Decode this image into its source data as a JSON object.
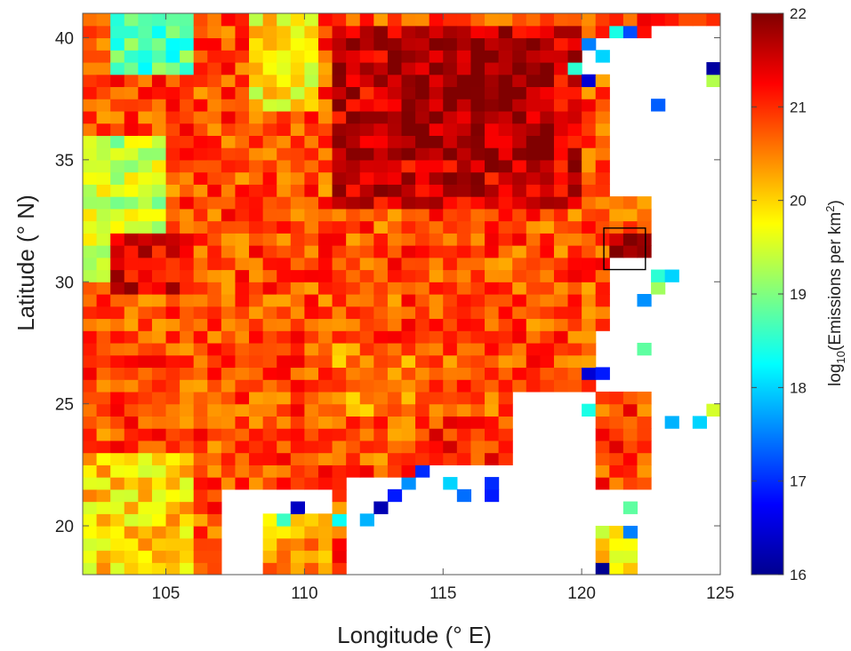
{
  "chart_data": {
    "type": "heatmap",
    "title": "",
    "xlabel": "Longitude (° E)",
    "ylabel": "Latitude (° N)",
    "xlim": [
      102,
      125
    ],
    "ylim": [
      18,
      41
    ],
    "xticks": [
      105,
      110,
      115,
      120,
      125
    ],
    "yticks": [
      20,
      25,
      30,
      35,
      40
    ],
    "grid_step_deg": 0.5,
    "grid": false,
    "colorbar": {
      "label_prefix": "log",
      "label_sub": "10",
      "label_mid": "(Emissions per km",
      "label_sup": "2",
      "label_suffix": ")",
      "range": [
        16,
        22
      ],
      "ticks": [
        16,
        17,
        18,
        19,
        20,
        21,
        22
      ],
      "colormap": "jet",
      "position": "right"
    },
    "highlight_box": {
      "lon": [
        120.8,
        122.3
      ],
      "lat": [
        30.5,
        32.2
      ]
    },
    "regions": [
      {
        "lon": [
          102,
          125
        ],
        "lat": [
          18,
          41
        ],
        "value": 20.8
      },
      {
        "lon": [
          111,
          120
        ],
        "lat": [
          33,
          40.5
        ],
        "value": 21.5
      },
      {
        "lon": [
          113,
          119
        ],
        "lat": [
          35,
          40
        ],
        "value": 21.8
      },
      {
        "lon": [
          102,
          105
        ],
        "lat": [
          30,
          36
        ],
        "value": 19.4
      },
      {
        "lon": [
          103,
          106
        ],
        "lat": [
          38.5,
          41
        ],
        "value": 18.7
      },
      {
        "lon": [
          108,
          110.5
        ],
        "lat": [
          37,
          41
        ],
        "value": 19.8
      },
      {
        "lon": [
          102,
          106
        ],
        "lat": [
          18,
          23
        ],
        "value": 20.0
      },
      {
        "lon": [
          103,
          106
        ],
        "lat": [
          29.5,
          32
        ],
        "value": 21.4
      },
      {
        "lon": [
          120.8,
          122.3
        ],
        "lat": [
          30.5,
          32.2
        ],
        "value": 21.8
      },
      {
        "lon": [
          111,
          114
        ],
        "lat": [
          24.5,
          27.5
        ],
        "value": 20.5
      },
      {
        "lon": [
          114,
          117.5
        ],
        "lat": [
          22.5,
          24.5
        ],
        "value": 21.0
      }
    ],
    "masked_regions": [
      {
        "lon": [
          120.8,
          125
        ],
        "lat": [
          33.5,
          38.5
        ]
      },
      {
        "lon": [
          122.3,
          125
        ],
        "lat": [
          26,
          33.5
        ]
      },
      {
        "lon": [
          121.2,
          125
        ],
        "lat": [
          28,
          31
        ]
      },
      {
        "lon": [
          120.3,
          125
        ],
        "lat": [
          25.5,
          28
        ]
      },
      {
        "lon": [
          114,
          125
        ],
        "lat": [
          18,
          22.5
        ]
      },
      {
        "lon": [
          117.5,
          120.5
        ],
        "lat": [
          22.5,
          25.5
        ]
      },
      {
        "lon": [
          107,
          111
        ],
        "lat": [
          18,
          21.5
        ]
      },
      {
        "lon": [
          111.5,
          114
        ],
        "lat": [
          18,
          22
        ]
      },
      {
        "lon": [
          122.5,
          125
        ],
        "lat": [
          38.5,
          40.3
        ]
      },
      {
        "lon": [
          119.8,
          122.6
        ],
        "lat": [
          38.5,
          40
        ]
      },
      {
        "lon": [
          122.4,
          125
        ],
        "lat": [
          18,
          25
        ]
      },
      {
        "lon": [
          121.5,
          125
        ],
        "lat": [
          22.5,
          25.5
        ]
      },
      {
        "lon": [
          120.4,
          121.3
        ],
        "lat": [
          22,
          25.3
        ]
      }
    ],
    "land_patches": [
      {
        "lon": [
          120.5,
          122.3
        ],
        "lat": [
          21.5,
          25.5
        ],
        "value": 20.9
      },
      {
        "lon": [
          108.5,
          111
        ],
        "lat": [
          18,
          20.5
        ],
        "value": 20.3
      },
      {
        "lon": [
          120.3,
          122.2
        ],
        "lat": [
          18,
          19.8
        ],
        "value": 19.8
      }
    ],
    "low_cells": [
      {
        "lon": 120.25,
        "lat": 39.75,
        "value": 17.5
      },
      {
        "lon": 120.75,
        "lat": 39.25,
        "value": 18.0
      },
      {
        "lon": 119.75,
        "lat": 38.75,
        "value": 18.5
      },
      {
        "lon": 120.25,
        "lat": 38.25,
        "value": 16.5
      },
      {
        "lon": 121.75,
        "lat": 40.25,
        "value": 17.2
      },
      {
        "lon": 121.25,
        "lat": 40.25,
        "value": 18.4
      },
      {
        "lon": 122.75,
        "lat": 37.25,
        "value": 17.3
      },
      {
        "lon": 124.75,
        "lat": 38.75,
        "value": 16.2
      },
      {
        "lon": 124.75,
        "lat": 38.25,
        "value": 19.3
      },
      {
        "lon": 122.75,
        "lat": 30.25,
        "value": 18.5
      },
      {
        "lon": 123.25,
        "lat": 30.25,
        "value": 18.0
      },
      {
        "lon": 122.75,
        "lat": 29.75,
        "value": 19.2
      },
      {
        "lon": 122.25,
        "lat": 29.25,
        "value": 17.6
      },
      {
        "lon": 122.25,
        "lat": 27.25,
        "value": 18.8
      },
      {
        "lon": 120.75,
        "lat": 26.25,
        "value": 16.9
      },
      {
        "lon": 120.25,
        "lat": 26.25,
        "value": 16.5
      },
      {
        "lon": 120.25,
        "lat": 24.75,
        "value": 18.4
      },
      {
        "lon": 123.25,
        "lat": 24.25,
        "value": 17.8
      },
      {
        "lon": 124.25,
        "lat": 24.25,
        "value": 18.0
      },
      {
        "lon": 124.75,
        "lat": 24.75,
        "value": 19.5
      },
      {
        "lon": 114.25,
        "lat": 22.25,
        "value": 17.0
      },
      {
        "lon": 113.75,
        "lat": 21.75,
        "value": 17.6
      },
      {
        "lon": 115.25,
        "lat": 21.75,
        "value": 18.0
      },
      {
        "lon": 115.75,
        "lat": 21.25,
        "value": 17.4
      },
      {
        "lon": 116.75,
        "lat": 21.75,
        "value": 17.0
      },
      {
        "lon": 116.75,
        "lat": 21.25,
        "value": 16.9
      },
      {
        "lon": 113.25,
        "lat": 21.25,
        "value": 16.9
      },
      {
        "lon": 112.75,
        "lat": 20.75,
        "value": 16.3
      },
      {
        "lon": 112.25,
        "lat": 20.25,
        "value": 17.8
      },
      {
        "lon": 111.25,
        "lat": 20.25,
        "value": 18.3
      },
      {
        "lon": 109.25,
        "lat": 20.25,
        "value": 18.6
      },
      {
        "lon": 109.75,
        "lat": 20.75,
        "value": 16.4
      },
      {
        "lon": 120.75,
        "lat": 18.25,
        "value": 16.1
      },
      {
        "lon": 121.75,
        "lat": 19.75,
        "value": 17.5
      },
      {
        "lon": 121.75,
        "lat": 20.75,
        "value": 18.8
      }
    ]
  }
}
